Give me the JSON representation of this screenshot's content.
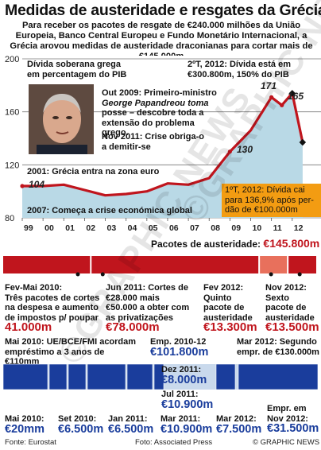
{
  "header": {
    "title": "Medidas de austeridade e resgates da Grécia",
    "subtitle": "Para receber os pacotes de resgate de €240.000 milhões da União Europeia, Banco Central Europeu e Fundo Monetário Internacional, a Grécia arovou medidas de austeridade draconianas para cortar mais de €145.000m"
  },
  "chart_data": {
    "type": "area",
    "y_title_lines": [
      "Dívida soberana grega",
      "em percentagem do PIB"
    ],
    "ylim": [
      80,
      200
    ],
    "yticks": [
      "200",
      "160",
      "120",
      "80"
    ],
    "xticks": [
      "99",
      "00",
      "01",
      "02",
      "03",
      "04",
      "05",
      "06",
      "07",
      "08",
      "09",
      "10",
      "11",
      "12"
    ],
    "series": [
      {
        "x": [
          1999,
          2000,
          2001,
          2002,
          2003,
          2004,
          2005,
          2006,
          2007,
          2008,
          2009,
          2010,
          2011,
          2011.5,
          2012,
          2012.5
        ],
        "values": [
          104,
          104,
          105,
          101,
          97,
          98,
          100,
          106,
          105,
          110,
          130,
          146,
          171,
          165,
          174,
          137
        ]
      }
    ],
    "data_labels": [
      "104",
      "130",
      "171",
      "165"
    ],
    "annotations": {
      "peak": "2ºT, 2012: Dívida está em €300.800m, 150% do PIB",
      "out2009": [
        "Out 2009: Primeiro-ministro",
        "George Papandreou toma",
        "posse – descobre toda a",
        "extensão do problema grego."
      ],
      "nov2011": [
        "Nov 2011: Crise obriga-o",
        "a demitir-se"
      ],
      "euro2001": "2001: Grécia entra na zona euro",
      "crisis2007": "2007: Começa a crise económica global",
      "drop2012": [
        "1ºT, 2012: Dívida cai",
        "para 136,9% após per-",
        "dão de €100.000m"
      ]
    }
  },
  "austerity": {
    "header": "Pacotes de austeridade:",
    "total": "€145.800m",
    "items": [
      {
        "label_lines": [
          "Fev-Mai 2010:",
          "Três pacotes de cortes",
          "na despesa e aumento",
          "de impostos p/ poupar"
        ],
        "amount": "41.000m",
        "share": 0.281
      },
      {
        "label_lines": [
          "Jun 2011: Cortes de",
          "€28.000 mais",
          "€50.000 a obter com",
          "as privatizações"
        ],
        "amount": "€78.000m",
        "share": 0.535
      },
      {
        "label_lines": [
          "Fev 2012:",
          "Quinto",
          "pacote de",
          "austeridade"
        ],
        "amount": "€13.300m",
        "share": 0.091
      },
      {
        "label_lines": [
          "Nov 2012:",
          "Sexto",
          "pacote de",
          "austeridade"
        ],
        "amount": "€13.500m",
        "share": 0.093
      }
    ]
  },
  "bailout": {
    "may2010": [
      "Mai 2010: UE/BCE/FMI acordam",
      "empréstimo a 3 anos de €110mm"
    ],
    "emp_label": "Emp. 2010-12",
    "emp_amount": "€101.800m",
    "mar2012": [
      "Mar 2012: Segundo",
      "empr. de €130.000m"
    ],
    "items": [
      {
        "label": "Mai 2010:",
        "amount": "€20mm"
      },
      {
        "label": "Set 2010:",
        "amount": "€6.500m"
      },
      {
        "label": "Jan 2011:",
        "amount": "€6.500m"
      },
      {
        "label": "Mar 2011:",
        "amount": "€10.900m"
      },
      {
        "label": "Mar 2012:",
        "amount": "€7.500m"
      },
      {
        "label": "Empr. em Nov 2012:",
        "amount": "€31.500m"
      }
    ],
    "dec2011": {
      "label": "Dez 2011:",
      "amount": "€8.000m"
    },
    "jul2011": {
      "label": "Jul 2011:",
      "amount": "€10.900m"
    }
  },
  "footer": {
    "source": "Fonte: Eurostat",
    "photo": "Foto: Associated Press",
    "credit": "© GRAPHIC NEWS",
    "watermark": "©GRAPHIC NEWS"
  },
  "colors": {
    "area": "#b9d9e6",
    "line": "#c0151d",
    "red": "#c0151d",
    "lightred": "#e8705c",
    "blue": "#1a3d9c",
    "lightblue": "#c9d9ec",
    "orange": "#f39c12"
  }
}
